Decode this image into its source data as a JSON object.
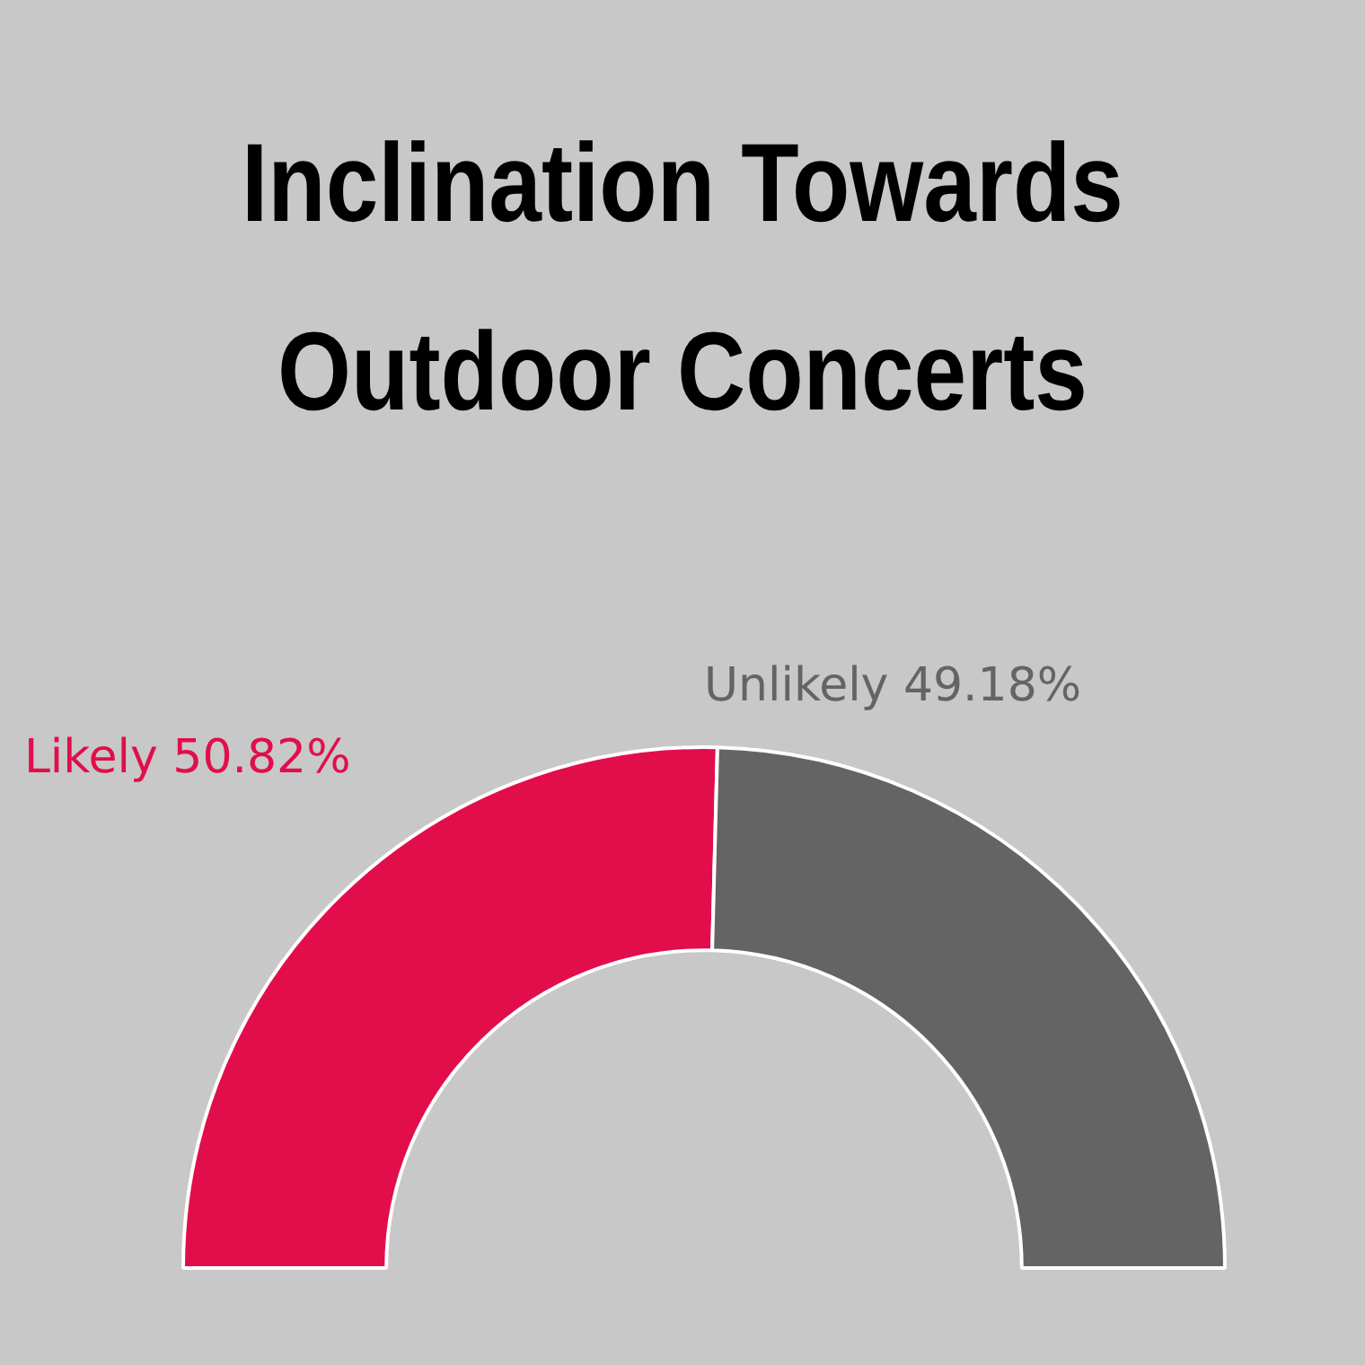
{
  "chart_data": {
    "type": "donut",
    "title": "Inclination Towards Outdoor Concerts",
    "categories": [
      "Likely",
      "Unlikely"
    ],
    "values": [
      50.82,
      49.18
    ],
    "colors": [
      "#e20e4b",
      "#646464"
    ],
    "value_labels": [
      "50.82%",
      "49.18%"
    ],
    "legend": false
  }
}
